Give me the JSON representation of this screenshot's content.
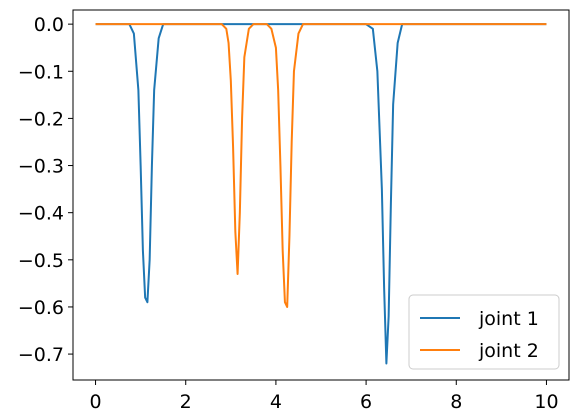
{
  "chart_data": {
    "type": "line",
    "title": "",
    "xlabel": "",
    "ylabel": "",
    "xlim": [
      -0.5,
      10.5
    ],
    "ylim": [
      -0.755,
      0.03
    ],
    "xticks": [
      0,
      2,
      4,
      6,
      8,
      10
    ],
    "xtick_labels": [
      "0",
      "2",
      "4",
      "6",
      "8",
      "10"
    ],
    "yticks": [
      0.0,
      -0.1,
      -0.2,
      -0.3,
      -0.4,
      -0.5,
      -0.6,
      -0.7
    ],
    "ytick_labels": [
      "0.0",
      "−0.1",
      "−0.2",
      "−0.3",
      "−0.4",
      "−0.5",
      "−0.6",
      "−0.7"
    ],
    "grid": false,
    "legend": {
      "position": "lower-right"
    },
    "series": [
      {
        "name": "joint 1",
        "color": "#1f77b4",
        "x": [
          0.0,
          0.75,
          0.85,
          0.95,
          1.0,
          1.05,
          1.1,
          1.15,
          1.2,
          1.25,
          1.3,
          1.4,
          1.5,
          1.6,
          2.0,
          3.0,
          4.0,
          5.0,
          6.0,
          6.15,
          6.25,
          6.35,
          6.4,
          6.45,
          6.5,
          6.55,
          6.6,
          6.7,
          6.8,
          7.0,
          8.0,
          9.0,
          10.0
        ],
        "y": [
          0.0,
          0.0,
          -0.02,
          -0.14,
          -0.3,
          -0.48,
          -0.58,
          -0.59,
          -0.5,
          -0.3,
          -0.14,
          -0.03,
          0.0,
          0.0,
          0.0,
          0.0,
          0.0,
          0.0,
          0.0,
          -0.01,
          -0.1,
          -0.35,
          -0.56,
          -0.72,
          -0.62,
          -0.38,
          -0.17,
          -0.04,
          0.0,
          0.0,
          0.0,
          0.0,
          0.0
        ]
      },
      {
        "name": "joint 2",
        "color": "#ff7f0e",
        "x": [
          0.0,
          2.0,
          2.8,
          2.9,
          2.95,
          3.0,
          3.05,
          3.1,
          3.15,
          3.2,
          3.25,
          3.3,
          3.4,
          3.5,
          3.8,
          3.9,
          4.0,
          4.05,
          4.1,
          4.15,
          4.2,
          4.25,
          4.3,
          4.35,
          4.4,
          4.5,
          4.6,
          5.0,
          6.0,
          8.0,
          10.0
        ],
        "y": [
          0.0,
          0.0,
          0.0,
          -0.01,
          -0.04,
          -0.12,
          -0.26,
          -0.44,
          -0.53,
          -0.4,
          -0.2,
          -0.07,
          -0.01,
          0.0,
          0.0,
          -0.01,
          -0.05,
          -0.14,
          -0.3,
          -0.48,
          -0.59,
          -0.6,
          -0.45,
          -0.25,
          -0.1,
          -0.02,
          0.0,
          0.0,
          0.0,
          0.0,
          0.0
        ]
      }
    ]
  }
}
